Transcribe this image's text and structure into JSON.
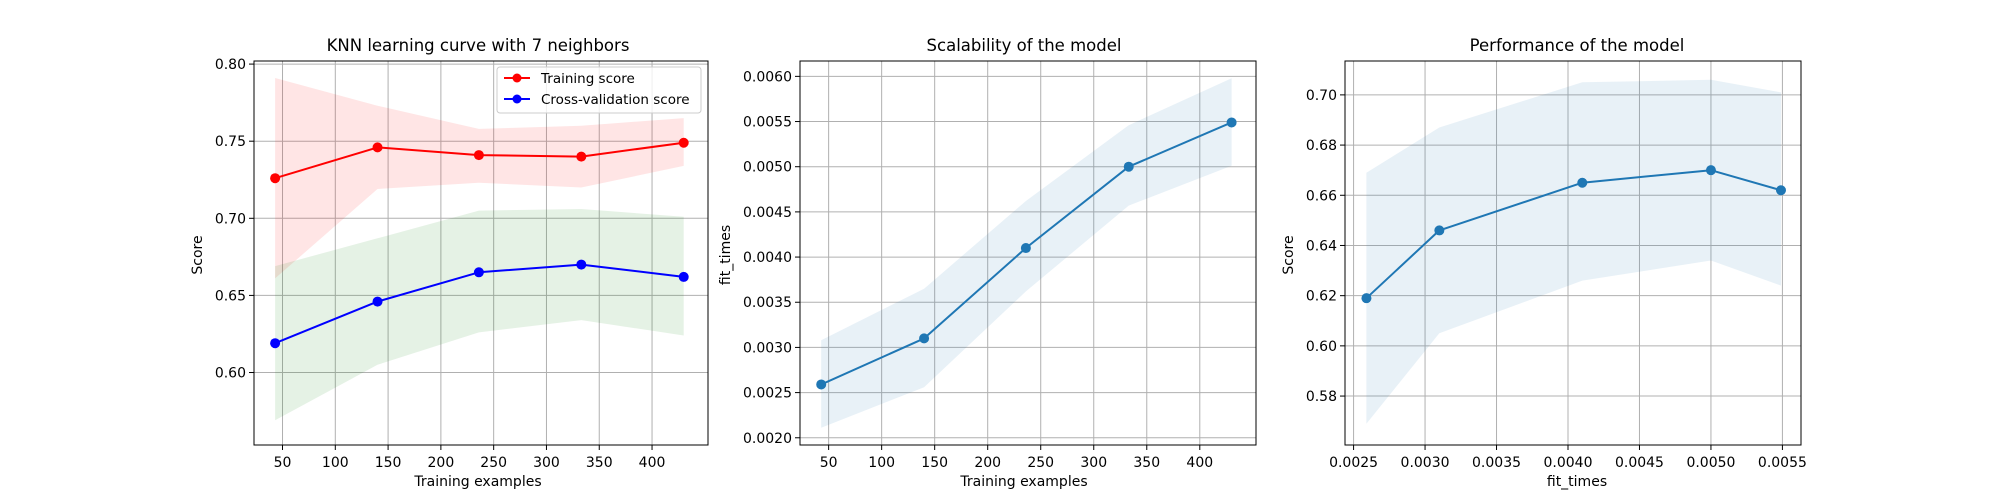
{
  "chart_data": [
    {
      "type": "line",
      "title": "KNN learning curve with 7 neighbors",
      "xlabel": "Training examples",
      "ylabel": "Score",
      "xlim": [
        23,
        453
      ],
      "ylim": [
        0.553,
        0.802
      ],
      "xticks": [
        50,
        100,
        150,
        200,
        250,
        300,
        350,
        400
      ],
      "yticks": [
        0.6,
        0.65,
        0.7,
        0.75,
        0.8
      ],
      "ytick_labels": [
        "0.60",
        "0.65",
        "0.70",
        "0.75",
        "0.80"
      ],
      "grid": true,
      "legend": "top-right",
      "series": [
        {
          "name": "Training score",
          "color": "#ff0000",
          "fill_color": "#ff0000",
          "x": [
            43,
            140,
            236,
            333,
            430
          ],
          "y": [
            0.726,
            0.746,
            0.741,
            0.74,
            0.749
          ],
          "band_upper": [
            0.791,
            0.773,
            0.758,
            0.76,
            0.765
          ],
          "band_lower": [
            0.661,
            0.719,
            0.723,
            0.72,
            0.734
          ]
        },
        {
          "name": "Cross-validation score",
          "color": "#0000ff",
          "fill_color": "#008000",
          "x": [
            43,
            140,
            236,
            333,
            430
          ],
          "y": [
            0.619,
            0.646,
            0.665,
            0.67,
            0.662
          ],
          "band_upper": [
            0.669,
            0.687,
            0.705,
            0.706,
            0.701
          ],
          "band_lower": [
            0.569,
            0.605,
            0.626,
            0.634,
            0.624
          ]
        }
      ]
    },
    {
      "type": "line",
      "title": "Scalability of the model",
      "xlabel": "Training examples",
      "ylabel": "fit_times",
      "xlim": [
        23,
        453
      ],
      "ylim": [
        0.00192,
        0.00617
      ],
      "xticks": [
        50,
        100,
        150,
        200,
        250,
        300,
        350,
        400
      ],
      "yticks": [
        0.002,
        0.0025,
        0.003,
        0.0035,
        0.004,
        0.0045,
        0.005,
        0.0055,
        0.006
      ],
      "ytick_labels": [
        "0.0020",
        "0.0025",
        "0.0030",
        "0.0035",
        "0.0040",
        "0.0045",
        "0.0050",
        "0.0055",
        "0.0060"
      ],
      "grid": true,
      "series": [
        {
          "color": "#1f77b4",
          "fill_color": "#1f77b4",
          "x": [
            43,
            140,
            236,
            333,
            430
          ],
          "y": [
            0.00259,
            0.0031,
            0.0041,
            0.005,
            0.00549
          ],
          "band_upper": [
            0.00308,
            0.00365,
            0.00462,
            0.00546,
            0.00598
          ],
          "band_lower": [
            0.00211,
            0.00256,
            0.00362,
            0.00457,
            0.00501
          ]
        }
      ]
    },
    {
      "type": "line",
      "title": "Performance of the model",
      "xlabel": "fit_times",
      "ylabel": "Score",
      "xlim": [
        0.00244,
        0.00563
      ],
      "ylim": [
        0.5605,
        0.7135
      ],
      "xticks": [
        0.0025,
        0.003,
        0.0035,
        0.004,
        0.0045,
        0.005,
        0.0055
      ],
      "xtick_labels": [
        "0.0025",
        "0.0030",
        "0.0035",
        "0.0040",
        "0.0045",
        "0.0050",
        "0.0055"
      ],
      "yticks": [
        0.58,
        0.6,
        0.62,
        0.64,
        0.66,
        0.68,
        0.7
      ],
      "ytick_labels": [
        "0.58",
        "0.60",
        "0.62",
        "0.64",
        "0.66",
        "0.68",
        "0.70"
      ],
      "grid": true,
      "series": [
        {
          "color": "#1f77b4",
          "fill_color": "#1f77b4",
          "x": [
            0.00259,
            0.0031,
            0.0041,
            0.005,
            0.00549
          ],
          "y": [
            0.619,
            0.646,
            0.665,
            0.67,
            0.662
          ],
          "band_upper": [
            0.669,
            0.687,
            0.705,
            0.706,
            0.701
          ],
          "band_lower": [
            0.569,
            0.605,
            0.626,
            0.634,
            0.624
          ]
        }
      ]
    }
  ]
}
